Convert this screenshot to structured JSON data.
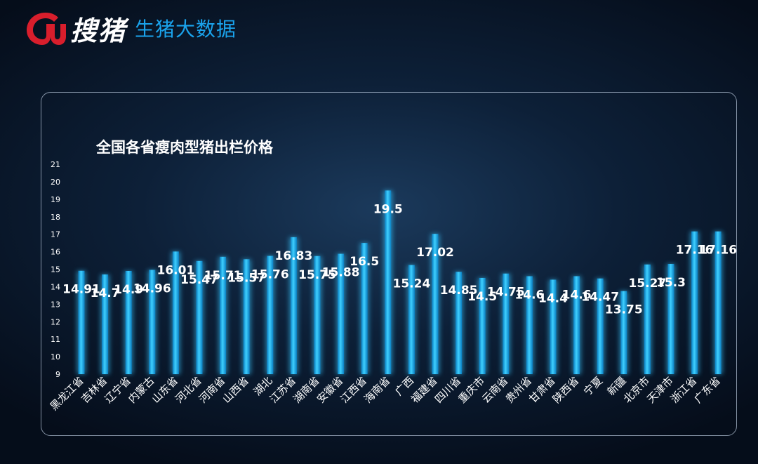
{
  "header": {
    "logo_text": "搜猪",
    "brand_subtitle": "生猪大数据"
  },
  "colors": {
    "bar": "#00b4f5",
    "bar_glow": "#39c8ff",
    "brand_blue": "#1aa3ec",
    "logo_red": "#d81e2c"
  },
  "chart_data": {
    "type": "bar",
    "title": "全国各省瘦肉型猪出栏价格",
    "xlabel": "",
    "ylabel": "",
    "ylim": [
      9,
      21
    ],
    "yticks": [
      9,
      10,
      11,
      12,
      13,
      14,
      15,
      16,
      17,
      18,
      19,
      20,
      21
    ],
    "grid": false,
    "categories": [
      "黑龙江省",
      "吉林省",
      "辽宁省",
      "内蒙古",
      "山东省",
      "河北省",
      "河南省",
      "山西省",
      "湖北",
      "江苏省",
      "湖南省",
      "安徽省",
      "江西省",
      "海南省",
      "广西",
      "福建省",
      "四川省",
      "重庆市",
      "云南省",
      "贵州省",
      "甘肃省",
      "陕西省",
      "宁夏",
      "新疆",
      "北京市",
      "天津市",
      "浙江省",
      "广东省"
    ],
    "values": [
      14.91,
      14.7,
      14.9,
      14.96,
      16.01,
      15.47,
      15.71,
      15.57,
      15.76,
      16.83,
      15.75,
      15.88,
      16.5,
      19.5,
      15.24,
      17.02,
      14.85,
      14.5,
      14.75,
      14.6,
      14.4,
      14.6,
      14.47,
      13.75,
      15.27,
      15.3,
      17.16,
      17.16
    ],
    "data_labels": [
      "14.91",
      "14.7",
      "14.9",
      "14.96",
      "16.01",
      "15.47",
      "15.71",
      "15.57",
      "15.76",
      "16.83",
      "15.75",
      "15.88",
      "16.5",
      "19.5",
      "15.24",
      "17.02",
      "14.85",
      "14.5",
      "14.75",
      "14.6",
      "14.4",
      "14.6",
      "14.47",
      "13.75",
      "15.27",
      "15.3",
      "17.16",
      "17.16"
    ]
  }
}
